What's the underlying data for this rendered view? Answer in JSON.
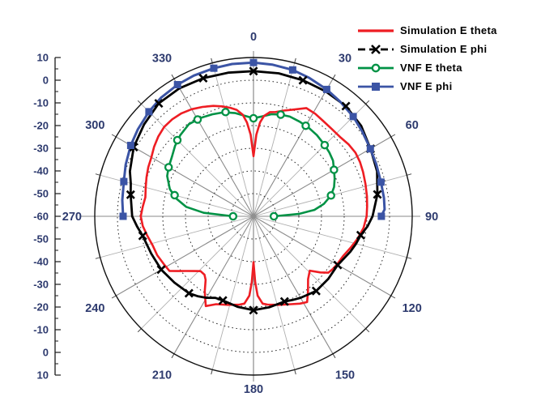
{
  "chart_data": {
    "type": "line",
    "coordinate": "polar",
    "title": "",
    "legend_position": "top-right",
    "angle_labels": [
      0,
      30,
      60,
      90,
      120,
      150,
      180,
      210,
      240,
      270,
      300,
      330
    ],
    "angular_minor_step_deg": 15,
    "radial_axis": {
      "outer": 10,
      "center": -60,
      "major_step": 10,
      "minor_step": 5,
      "tick_labels_top_to_bottom": [
        10,
        0,
        -10,
        -20,
        -30,
        -40,
        -50,
        -60,
        -50,
        -40,
        -30,
        -20,
        -10,
        0,
        10
      ]
    },
    "colors": {
      "tick_label": "#2d3a6e",
      "angle_label": "#2d3a6e",
      "spoke_major": "#8a8a8a",
      "spoke_minor": "#b0b0b0",
      "ring_dotted": "#2b2b2b",
      "outer_ring": "#111111",
      "axis_line": "#1a1a1a",
      "center_dot": "#909090"
    },
    "series": [
      {
        "id": "sim-etheta",
        "name": "Simulation E theta",
        "color": "#ee1d23",
        "line": "solid",
        "marker": "none",
        "points": [
          [
            0,
            -33.5
          ],
          [
            2,
            -24
          ],
          [
            4,
            -18.5
          ],
          [
            6,
            -15.5
          ],
          [
            9,
            -13.5
          ],
          [
            12,
            -13
          ],
          [
            16,
            -11.5
          ],
          [
            20,
            -10
          ],
          [
            26,
            -6.9
          ],
          [
            31,
            -7.2
          ],
          [
            36,
            -7.9
          ],
          [
            42,
            -8.3
          ],
          [
            48,
            -8.2
          ],
          [
            53,
            -7.4
          ],
          [
            58,
            -7
          ],
          [
            63,
            -7.3
          ],
          [
            68,
            -7.9
          ],
          [
            74,
            -8.6
          ],
          [
            80,
            -9.2
          ],
          [
            85,
            -9.7
          ],
          [
            90,
            -10.1
          ],
          [
            96,
            -11.2
          ],
          [
            102,
            -13
          ],
          [
            108,
            -15
          ],
          [
            114,
            -16.8
          ],
          [
            120,
            -17.5
          ],
          [
            124,
            -18.1
          ],
          [
            127,
            -18.7
          ],
          [
            130,
            -21.5
          ],
          [
            134,
            -25.5
          ],
          [
            139,
            -23.3
          ],
          [
            144,
            -19.1
          ],
          [
            148,
            -15.4
          ],
          [
            152,
            -16.4
          ],
          [
            157,
            -17.9
          ],
          [
            164,
            -19.4
          ],
          [
            171,
            -20.6
          ],
          [
            174,
            -21.3
          ],
          [
            177,
            -25
          ],
          [
            178.5,
            -31
          ],
          [
            180,
            -39.8
          ],
          [
            181.5,
            -31
          ],
          [
            183,
            -25
          ],
          [
            186,
            -21.3
          ],
          [
            189,
            -20.6
          ],
          [
            196,
            -19.4
          ],
          [
            203,
            -17.9
          ],
          [
            208,
            -15.2
          ],
          [
            213,
            -20.5
          ],
          [
            217,
            -24.9
          ],
          [
            220,
            -26.4
          ],
          [
            224,
            -26.4
          ],
          [
            227,
            -24.6
          ],
          [
            231,
            -21.7
          ],
          [
            234,
            -18.9
          ],
          [
            237,
            -15.8
          ],
          [
            242,
            -15.2
          ],
          [
            248,
            -14.2
          ],
          [
            254,
            -13.7
          ],
          [
            260,
            -12.3
          ],
          [
            265,
            -11
          ],
          [
            270,
            -10.3
          ],
          [
            275,
            -11
          ],
          [
            280,
            -11.6
          ],
          [
            285,
            -10.8
          ],
          [
            290,
            -9.8
          ],
          [
            295,
            -8.8
          ],
          [
            300,
            -8
          ],
          [
            305,
            -6.5
          ],
          [
            310,
            -5.2
          ],
          [
            315,
            -4.3
          ],
          [
            320,
            -4.2
          ],
          [
            325,
            -4.6
          ],
          [
            330,
            -5.5
          ],
          [
            335,
            -6.8
          ],
          [
            340,
            -8.2
          ],
          [
            344,
            -9.6
          ],
          [
            348,
            -11.1
          ],
          [
            351,
            -12.5
          ],
          [
            354,
            -15
          ],
          [
            356,
            -18.5
          ],
          [
            358,
            -24
          ],
          [
            360,
            -33.5
          ]
        ],
        "marker_points": []
      },
      {
        "id": "sim-ephi",
        "name": "Simulation E phi",
        "color": "#000000",
        "line": "dash-marker",
        "marker": "x",
        "points": [
          [
            0,
            4
          ],
          [
            10,
            4
          ],
          [
            20,
            3.8
          ],
          [
            30,
            3.6
          ],
          [
            40,
            3.4
          ],
          [
            50,
            2
          ],
          [
            60,
            -0.4
          ],
          [
            70,
            -2
          ],
          [
            80,
            -4.5
          ],
          [
            90,
            -7.5
          ],
          [
            95,
            -9.5
          ],
          [
            100,
            -12
          ],
          [
            105,
            -13.2
          ],
          [
            110,
            -14.5
          ],
          [
            115,
            -16
          ],
          [
            120,
            -17.1
          ],
          [
            130,
            -17
          ],
          [
            140,
            -17
          ],
          [
            150,
            -18.5
          ],
          [
            155,
            -19.3
          ],
          [
            160,
            -20
          ],
          [
            170,
            -19.3
          ],
          [
            180,
            -18.6
          ],
          [
            190,
            -19.5
          ],
          [
            200,
            -20.5
          ],
          [
            205,
            -20.3
          ],
          [
            210,
            -18.5
          ],
          [
            215,
            -17
          ],
          [
            220,
            -15.7
          ],
          [
            230,
            -14.5
          ],
          [
            240,
            -13
          ],
          [
            250,
            -12
          ],
          [
            260,
            -10.4
          ],
          [
            265,
            -8.5
          ],
          [
            270,
            -6.5
          ],
          [
            280,
            -5
          ],
          [
            285,
            -4
          ],
          [
            290,
            -2
          ],
          [
            300,
            1
          ],
          [
            310,
            3
          ],
          [
            320,
            5
          ],
          [
            330,
            5.2
          ],
          [
            340,
            4.8
          ],
          [
            350,
            4.3
          ],
          [
            360,
            4
          ]
        ],
        "marker_points": [
          [
            0,
            4
          ],
          [
            20,
            3.8
          ],
          [
            40,
            3.4
          ],
          [
            60,
            -0.4
          ],
          [
            80,
            -4.5
          ],
          [
            100,
            -12
          ],
          [
            120,
            -17.1
          ],
          [
            140,
            -17
          ],
          [
            160,
            -20
          ],
          [
            180,
            -18.6
          ],
          [
            200,
            -20.5
          ],
          [
            220,
            -15.7
          ],
          [
            240,
            -13
          ],
          [
            260,
            -10.4
          ],
          [
            280,
            -5
          ],
          [
            300,
            1
          ],
          [
            320,
            5
          ],
          [
            340,
            4.8
          ]
        ]
      },
      {
        "id": "vnf-etheta",
        "name": "VNF E theta",
        "color": "#009245",
        "line": "solid",
        "marker": "circle-open",
        "points": [
          [
            270,
            -51
          ],
          [
            274,
            -38
          ],
          [
            278,
            -30
          ],
          [
            283,
            -25
          ],
          [
            288,
            -21.2
          ],
          [
            295,
            -18
          ],
          [
            300,
            -16.8
          ],
          [
            306,
            -15.5
          ],
          [
            312,
            -13.5
          ],
          [
            318,
            -11.8
          ],
          [
            325,
            -10.4
          ],
          [
            332,
            -10.8
          ],
          [
            338,
            -11.5
          ],
          [
            344,
            -12.3
          ],
          [
            350,
            -13.8
          ],
          [
            355,
            -15.5
          ],
          [
            360,
            -16.8
          ],
          [
            365,
            -15.8
          ],
          [
            370,
            -14.3
          ],
          [
            375,
            -13.6
          ],
          [
            380,
            -13.2
          ],
          [
            386,
            -13.6
          ],
          [
            392,
            -14
          ],
          [
            398,
            -14.6
          ],
          [
            405,
            -15.6
          ],
          [
            410,
            -16.3
          ],
          [
            415,
            -17.2
          ],
          [
            420,
            -19
          ],
          [
            425,
            -20.5
          ],
          [
            430,
            -22.2
          ],
          [
            435,
            -24.6
          ],
          [
            440,
            -28.5
          ],
          [
            444,
            -33
          ],
          [
            447,
            -40
          ],
          [
            450,
            -51
          ]
        ],
        "marker_points": [
          [
            270,
            -51
          ],
          [
            285,
            -24
          ],
          [
            300,
            -16.8
          ],
          [
            315,
            -12.5
          ],
          [
            330,
            -10.7
          ],
          [
            345,
            -12.4
          ],
          [
            360,
            -16.8
          ],
          [
            375,
            -13.6
          ],
          [
            390,
            -13.9
          ],
          [
            405,
            -15.6
          ],
          [
            420,
            -19
          ],
          [
            435,
            -24.6
          ],
          [
            450,
            -51
          ]
        ]
      },
      {
        "id": "vnf-ephi",
        "name": "VNF E phi",
        "color": "#3b54a5",
        "line": "solid",
        "marker": "square",
        "points": [
          [
            270,
            -2.5
          ],
          [
            277,
            -1.7
          ],
          [
            285,
            -0.8
          ],
          [
            292,
            0.8
          ],
          [
            300,
            2.5
          ],
          [
            307,
            3.8
          ],
          [
            315,
            5.2
          ],
          [
            322,
            6.3
          ],
          [
            330,
            7
          ],
          [
            337,
            7.4
          ],
          [
            345,
            7.6
          ],
          [
            352,
            7.8
          ],
          [
            360,
            7.8
          ],
          [
            367,
            7.4
          ],
          [
            375,
            6.8
          ],
          [
            382,
            5.8
          ],
          [
            390,
            4.6
          ],
          [
            397,
            3.4
          ],
          [
            405,
            2.2
          ],
          [
            412,
            0.8
          ],
          [
            420,
            -0.5
          ],
          [
            427,
            -1.2
          ],
          [
            435,
            -1.8
          ],
          [
            442,
            -1.9
          ],
          [
            447,
            -2.1
          ],
          [
            449,
            -3.2
          ],
          [
            450,
            -3.6
          ]
        ],
        "marker_points": [
          [
            270,
            -2.5
          ],
          [
            285,
            -0.8
          ],
          [
            300,
            2.5
          ],
          [
            315,
            5.2
          ],
          [
            330,
            7
          ],
          [
            345,
            7.6
          ],
          [
            360,
            7.8
          ],
          [
            375,
            6.8
          ],
          [
            390,
            4.6
          ],
          [
            405,
            2.2
          ],
          [
            420,
            -0.5
          ],
          [
            435,
            -1.8
          ],
          [
            450,
            -3.6
          ]
        ]
      }
    ]
  }
}
